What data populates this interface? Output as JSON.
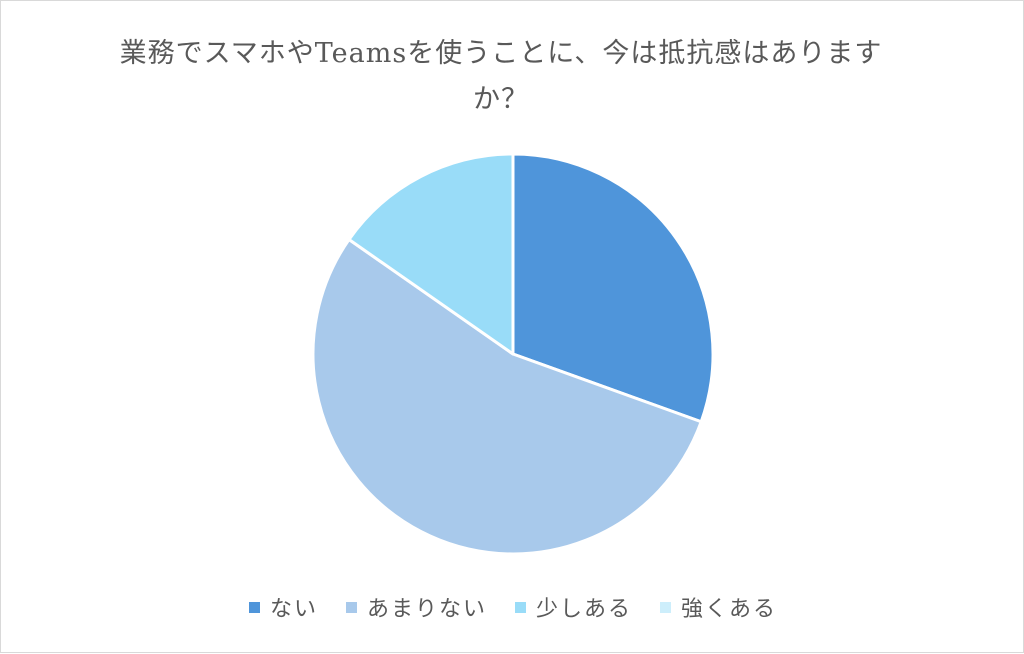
{
  "chart_data": {
    "type": "pie",
    "title": "業務でスマホやTeamsを使うことに、今は抵抗感はありますか？",
    "categories": [
      "ない",
      "あまりない",
      "少しある",
      "強くある"
    ],
    "values": [
      30.5,
      54.2,
      15.3,
      0
    ],
    "colors": [
      "#4f95da",
      "#a8c9eb",
      "#99dcf8",
      "#cdeefb"
    ],
    "legend_position": "bottom",
    "start_angle_deg": 0,
    "direction": "clockwise"
  }
}
